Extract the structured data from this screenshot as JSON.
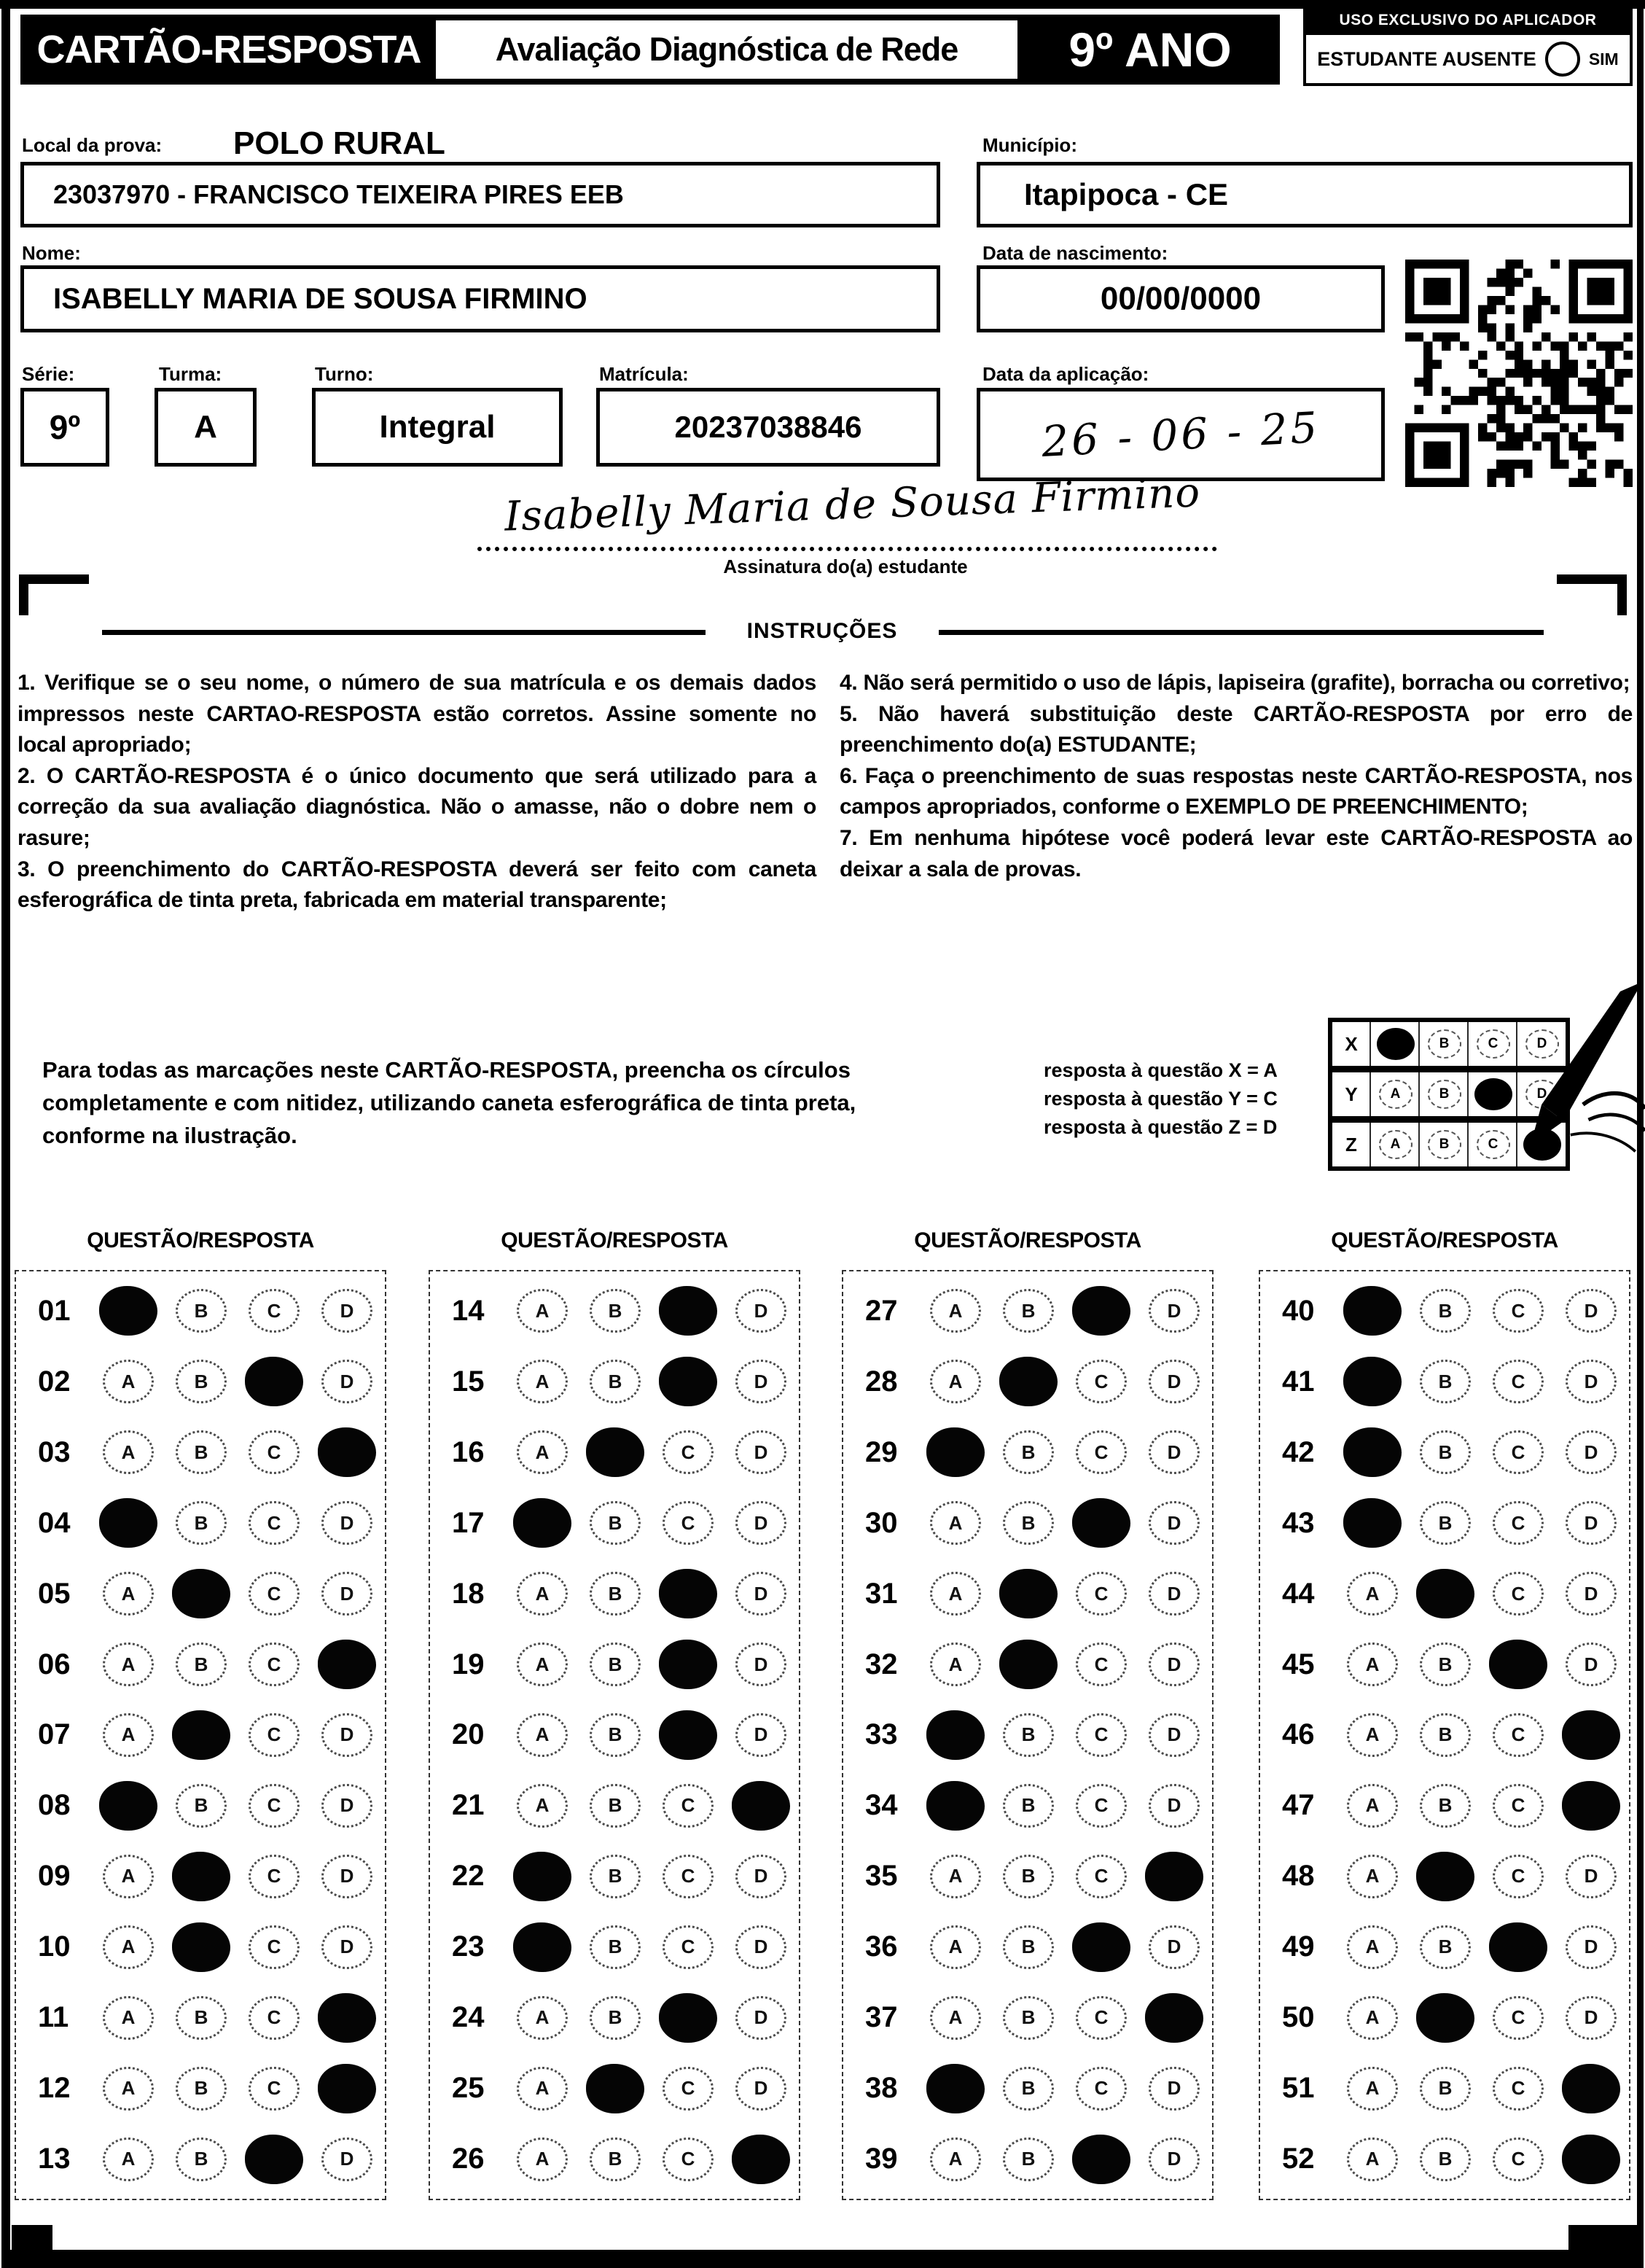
{
  "header": {
    "title": "CARTÃO-RESPOSTA",
    "subtitle": "Avaliação Diagnóstica de Rede",
    "grade": "9º ANO",
    "applicator_box_title": "USO EXCLUSIVO DO APLICADOR",
    "absent_label": "ESTUDANTE AUSENTE",
    "absent_option": "SIM"
  },
  "fields": {
    "local_label": "Local da prova:",
    "local_value": "POLO RURAL",
    "school_value": "23037970 - FRANCISCO TEIXEIRA PIRES EEB",
    "municipio_label": "Município:",
    "municipio_value": "Itapipoca - CE",
    "nome_label": "Nome:",
    "nome_value": "ISABELLY MARIA DE SOUSA FIRMINO",
    "nascimento_label": "Data de nascimento:",
    "nascimento_value": "00/00/0000",
    "serie_label": "Série:",
    "serie_value": "9º",
    "turma_label": "Turma:",
    "turma_value": "A",
    "turno_label": "Turno:",
    "turno_value": "Integral",
    "matricula_label": "Matrícula:",
    "matricula_value": "20237038846",
    "aplicacao_label": "Data da aplicação:",
    "aplicacao_value": "26 - 06 - 25",
    "signature_text": "Isabelly Maria de Sousa Firmino",
    "signature_label": "Assinatura do(a) estudante"
  },
  "instructions": {
    "title": "INSTRUÇÕES",
    "left": [
      "1. Verifique se o seu nome, o número de sua matrícula e os demais dados impressos neste CARTAO-RESPOSTA estão corretos. Assine somente no local apropriado;",
      "2. O CARTÃO-RESPOSTA é o único documento que será utilizado para a correção da sua avaliação diagnóstica. Não o amasse, não o dobre nem o rasure;",
      "3. O preenchimento do CARTÃO-RESPOSTA deverá ser feito com caneta esferográfica de tinta preta, fabricada em material transparente;"
    ],
    "right": [
      "4. Não será permitido o uso de lápis, lapiseira (grafite), borracha ou corretivo;",
      "5. Não haverá substituição deste CARTÃO-RESPOSTA por erro de preenchimento do(a) ESTUDANTE;",
      "6. Faça o preenchimento de suas respostas neste CARTÃO-RESPOSTA, nos campos apropriados, conforme o EXEMPLO DE PREENCHIMENTO;",
      "7. Em nenhuma hipótese você poderá levar este CARTÃO-RESPOSTA ao deixar a sala de provas."
    ]
  },
  "example": {
    "text": "Para todas as marcações neste CARTÃO-RESPOSTA, preencha os círculos completamente e com nitidez, utilizando caneta esferográfica de tinta preta, conforme na ilustração.",
    "legend": [
      "resposta à questão X = A",
      "resposta à questão Y = C",
      "resposta à questão Z = D"
    ],
    "grid": {
      "options": [
        "A",
        "B",
        "C",
        "D"
      ],
      "rows": [
        {
          "label": "X",
          "answer": "A"
        },
        {
          "label": "Y",
          "answer": "C"
        },
        {
          "label": "Z",
          "answer": "D"
        }
      ]
    }
  },
  "answers": {
    "column_header": "QUESTÃO/RESPOSTA",
    "options": [
      "A",
      "B",
      "C",
      "D"
    ],
    "columns": [
      [
        {
          "q": "01",
          "a": "A"
        },
        {
          "q": "02",
          "a": "C"
        },
        {
          "q": "03",
          "a": "D"
        },
        {
          "q": "04",
          "a": "A"
        },
        {
          "q": "05",
          "a": "B"
        },
        {
          "q": "06",
          "a": "D"
        },
        {
          "q": "07",
          "a": "B"
        },
        {
          "q": "08",
          "a": "A"
        },
        {
          "q": "09",
          "a": "B"
        },
        {
          "q": "10",
          "a": "B"
        },
        {
          "q": "11",
          "a": "D"
        },
        {
          "q": "12",
          "a": "D"
        },
        {
          "q": "13",
          "a": "C"
        }
      ],
      [
        {
          "q": "14",
          "a": "C"
        },
        {
          "q": "15",
          "a": "C"
        },
        {
          "q": "16",
          "a": "B"
        },
        {
          "q": "17",
          "a": "A"
        },
        {
          "q": "18",
          "a": "C"
        },
        {
          "q": "19",
          "a": "C"
        },
        {
          "q": "20",
          "a": "C"
        },
        {
          "q": "21",
          "a": "D"
        },
        {
          "q": "22",
          "a": "A"
        },
        {
          "q": "23",
          "a": "A"
        },
        {
          "q": "24",
          "a": "C"
        },
        {
          "q": "25",
          "a": "B"
        },
        {
          "q": "26",
          "a": "D"
        }
      ],
      [
        {
          "q": "27",
          "a": "C"
        },
        {
          "q": "28",
          "a": "B"
        },
        {
          "q": "29",
          "a": "A"
        },
        {
          "q": "30",
          "a": "C"
        },
        {
          "q": "31",
          "a": "B"
        },
        {
          "q": "32",
          "a": "B"
        },
        {
          "q": "33",
          "a": "A"
        },
        {
          "q": "34",
          "a": "A"
        },
        {
          "q": "35",
          "a": "D"
        },
        {
          "q": "36",
          "a": "C"
        },
        {
          "q": "37",
          "a": "D"
        },
        {
          "q": "38",
          "a": "A"
        },
        {
          "q": "39",
          "a": "C"
        }
      ],
      [
        {
          "q": "40",
          "a": "A"
        },
        {
          "q": "41",
          "a": "A"
        },
        {
          "q": "42",
          "a": "A"
        },
        {
          "q": "43",
          "a": "A"
        },
        {
          "q": "44",
          "a": "B"
        },
        {
          "q": "45",
          "a": "C"
        },
        {
          "q": "46",
          "a": "D"
        },
        {
          "q": "47",
          "a": "D"
        },
        {
          "q": "48",
          "a": "B"
        },
        {
          "q": "49",
          "a": "C"
        },
        {
          "q": "50",
          "a": "B"
        },
        {
          "q": "51",
          "a": "D"
        },
        {
          "q": "52",
          "a": "D"
        }
      ]
    ]
  }
}
